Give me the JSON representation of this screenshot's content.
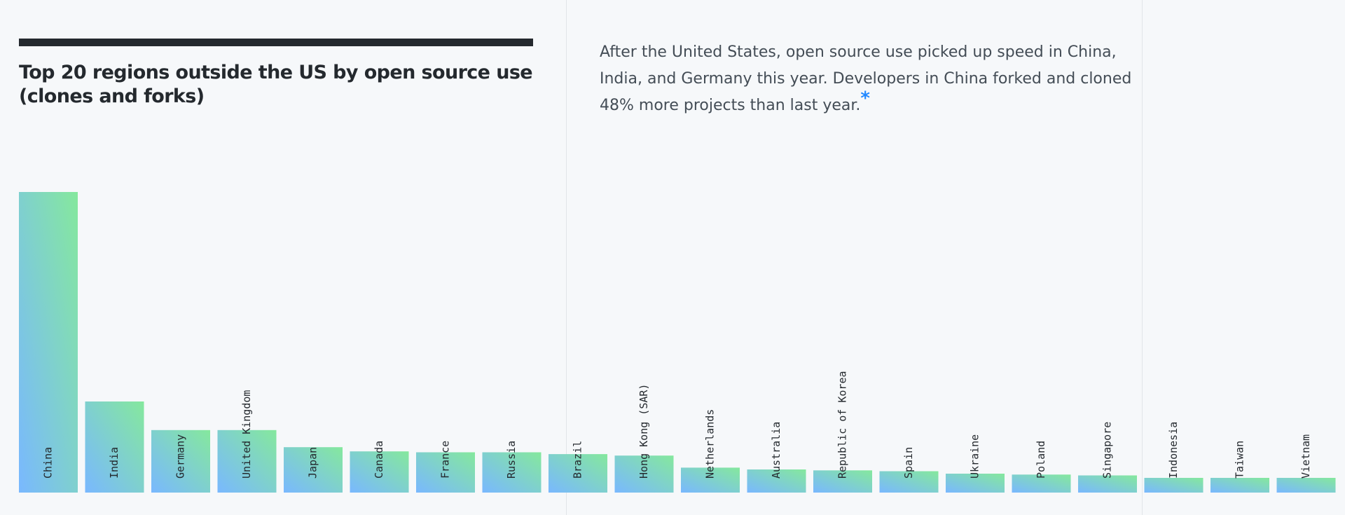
{
  "header": {
    "title": "Top 20 regions outside the US by open source use (clones and forks)",
    "description": "After the United States, open source use picked up speed in China, India, and Germany this year. Developers in China forked and cloned 48% more projects than last year.",
    "footnote_mark": "*"
  },
  "colors": {
    "bar_top": "#85e89d",
    "bar_bottom": "#79b8ff",
    "title_bar": "#24292e",
    "accent": "#2188ff"
  },
  "chart_data": {
    "type": "bar",
    "title": "Top 20 regions outside the US by open source use (clones and forks)",
    "categories": [
      "China",
      "India",
      "Germany",
      "United Kingdom",
      "Japan",
      "Canada",
      "France",
      "Russia",
      "Brazil",
      "Hong Kong (SAR)",
      "Netherlands",
      "Australia",
      "Republic of Korea",
      "Spain",
      "Ukraine",
      "Poland",
      "Singapore",
      "Indonesia",
      "Taiwan",
      "Vietnam"
    ],
    "values": [
      100,
      30.3,
      20.8,
      20.8,
      15.1,
      13.7,
      13.4,
      13.4,
      12.8,
      12.3,
      8.3,
      7.7,
      7.4,
      7.1,
      6.3,
      6.0,
      5.7,
      4.9,
      4.9,
      4.9
    ],
    "unit": "relative to China = 100 (estimated from bar heights)",
    "xlabel": "",
    "ylabel": "",
    "ylim": [
      0,
      100
    ],
    "grid": false,
    "legend": "none",
    "label_orientation": "vertical, inside bar"
  }
}
